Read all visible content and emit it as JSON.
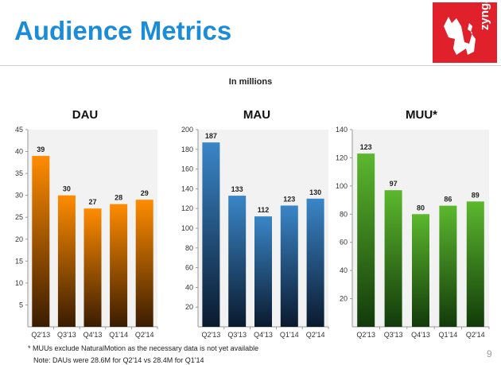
{
  "header": {
    "title": "Audience Metrics",
    "subtitle": "In millions",
    "logo_text": "zynga"
  },
  "colors": {
    "title": "#1a8cd8",
    "logo_bg": "#e0202a",
    "dau_bar": "#ff8c00",
    "mau_bar": "#2e6ea8",
    "muu_bar": "#4a9a2a"
  },
  "chart_data": [
    {
      "type": "bar",
      "title": "DAU",
      "categories": [
        "Q2'13",
        "Q3'13",
        "Q4'13",
        "Q1'14",
        "Q2'14"
      ],
      "values": [
        39,
        30,
        27,
        28,
        29
      ],
      "ylim": [
        0,
        45
      ],
      "yticks": [
        5,
        10,
        15,
        20,
        25,
        30,
        35,
        40,
        45
      ],
      "grid": false,
      "color_top": "#ff8c00",
      "color_bottom": "#3a1c00"
    },
    {
      "type": "bar",
      "title": "MAU",
      "categories": [
        "Q2'13",
        "Q3'13",
        "Q4'13",
        "Q1'14",
        "Q2'14"
      ],
      "values": [
        187,
        133,
        112,
        123,
        130
      ],
      "ylim": [
        0,
        200
      ],
      "yticks": [
        20,
        40,
        60,
        80,
        100,
        120,
        140,
        160,
        180,
        200
      ],
      "grid": false,
      "color_top": "#3a86c8",
      "color_bottom": "#0a1a2e"
    },
    {
      "type": "bar",
      "title": "MUU*",
      "categories": [
        "Q2'13",
        "Q3'13",
        "Q4'13",
        "Q1'14",
        "Q2'14"
      ],
      "values": [
        123,
        97,
        80,
        86,
        89
      ],
      "ylim": [
        0,
        140
      ],
      "yticks": [
        20,
        40,
        60,
        80,
        100,
        120,
        140
      ],
      "grid": false,
      "color_top": "#5cb82e",
      "color_bottom": "#123a0a"
    }
  ],
  "footer": {
    "footnote": "* MUUs exclude NaturalMotion as the necessary data is not yet available",
    "note": "Note:  DAUs were 28.6M for Q2'14 vs 28.4M for Q1'14",
    "page_number": "9"
  }
}
